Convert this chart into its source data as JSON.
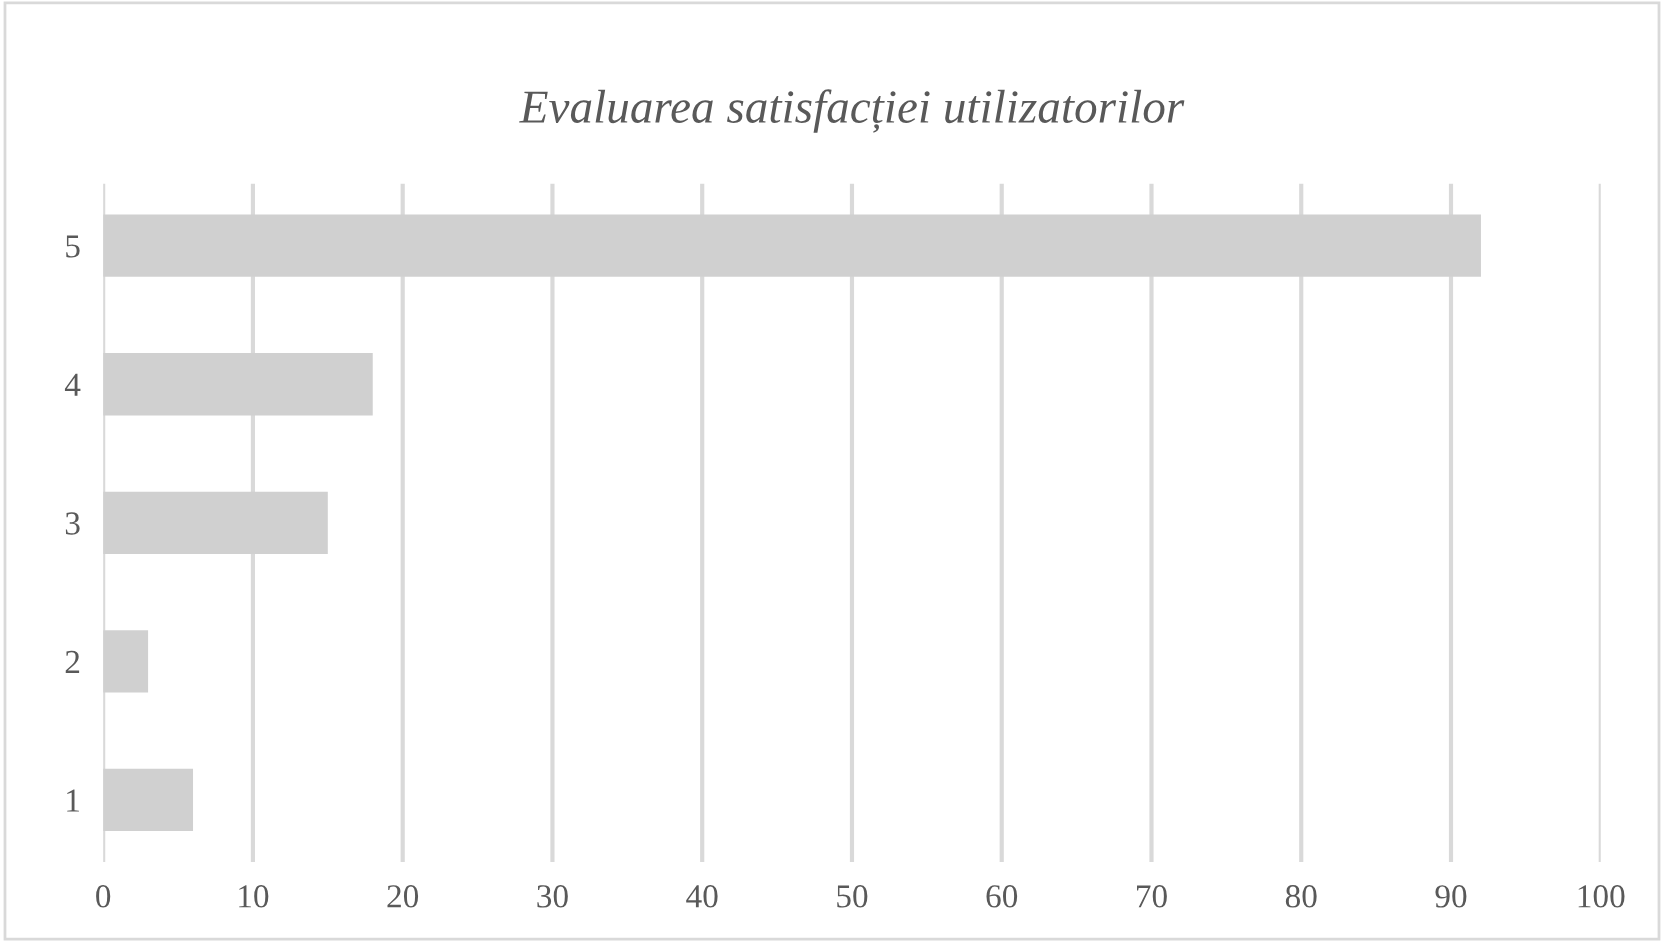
{
  "chart_data": {
    "type": "bar",
    "orientation": "horizontal",
    "title": "Evaluarea satisfacției utilizatorilor",
    "categories": [
      "5",
      "4",
      "3",
      "2",
      "1"
    ],
    "values": [
      92,
      18,
      15,
      3,
      6
    ],
    "color": "#d0d0d0",
    "xlim": [
      0,
      100
    ],
    "xticks": [
      0,
      10,
      20,
      30,
      40,
      50,
      60,
      70,
      80,
      90,
      100
    ],
    "grid": "x"
  }
}
